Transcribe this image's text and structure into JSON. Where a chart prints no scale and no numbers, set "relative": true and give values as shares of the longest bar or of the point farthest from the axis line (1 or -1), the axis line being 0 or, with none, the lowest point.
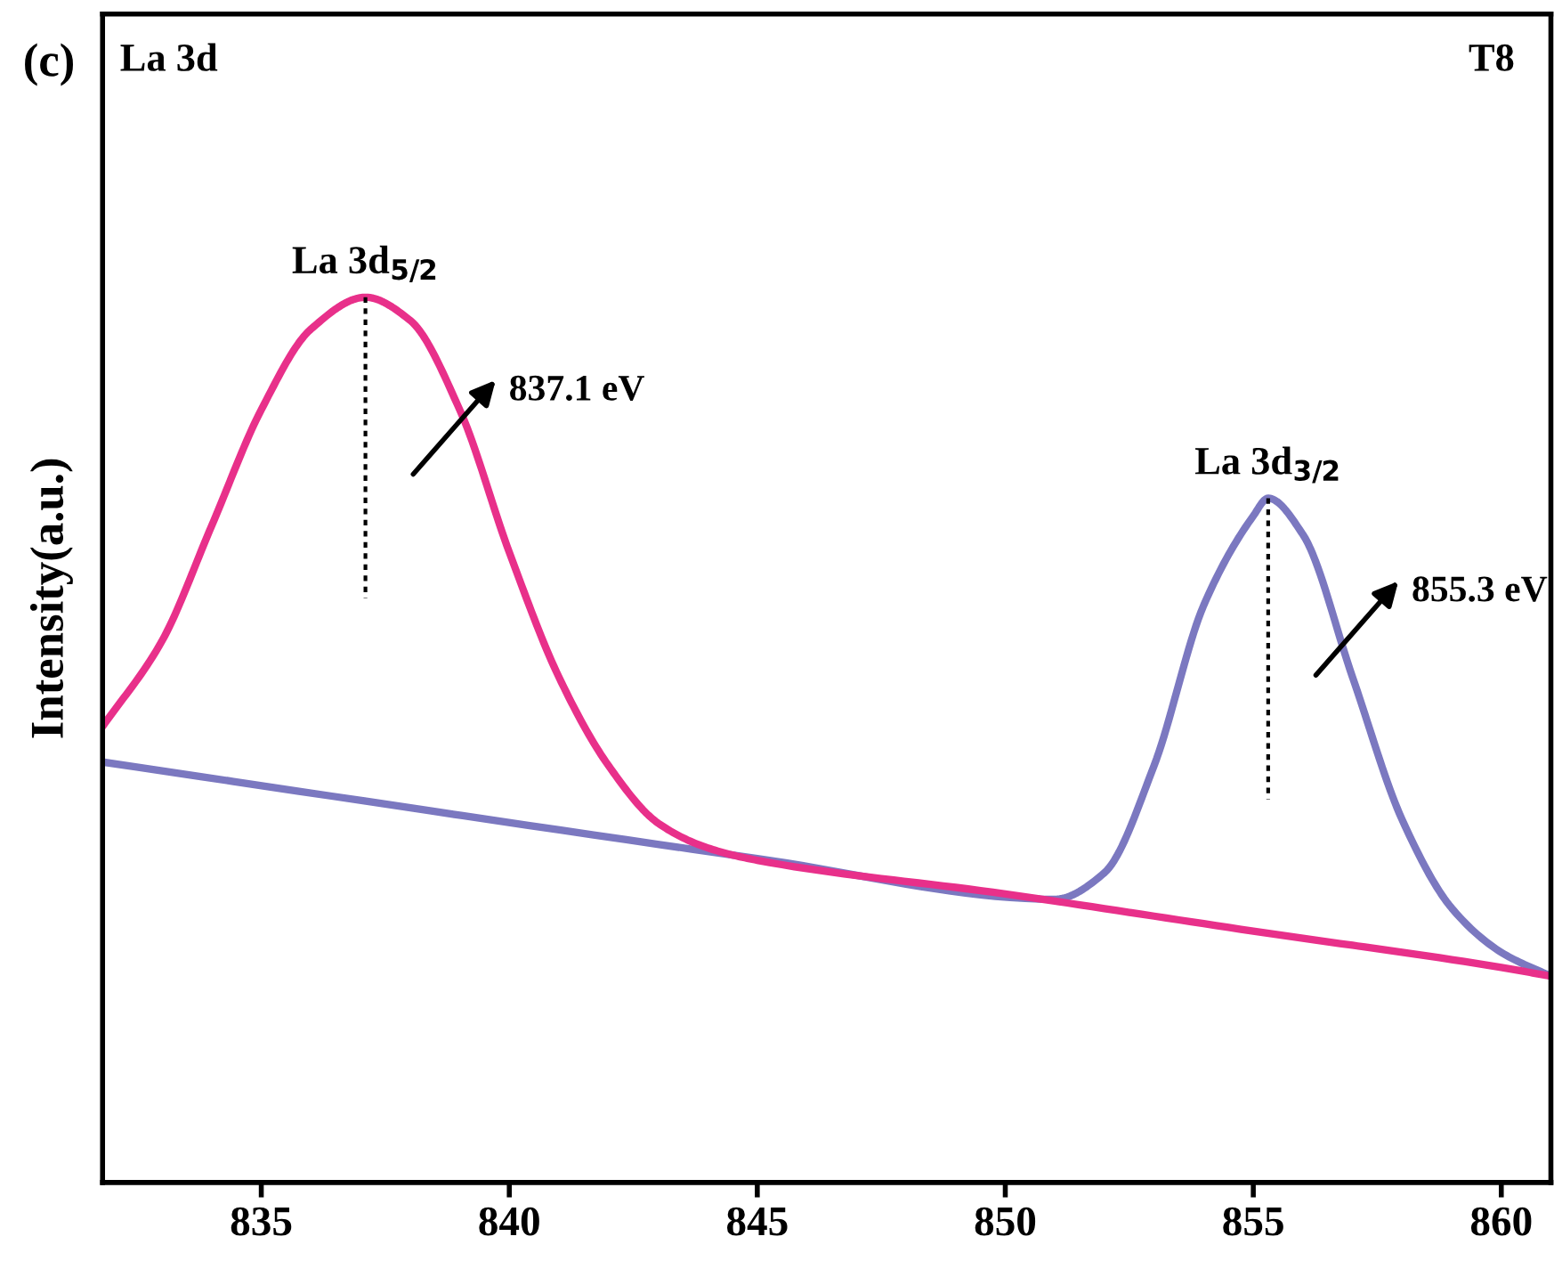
{
  "chart_data": {
    "type": "line",
    "ylabel": "Intensity(a.u.)",
    "relative": true,
    "xlim": [
      831.8,
      861
    ],
    "xticks": [
      835,
      840,
      845,
      850,
      855,
      860
    ],
    "series": [
      {
        "color": "#7b78c0",
        "x": [
          831.8,
          845,
          851,
          852,
          853,
          854,
          855,
          855.3,
          856,
          857,
          858,
          859,
          860,
          861
        ],
        "values": [
          0.475,
          0.366,
          0.32,
          0.35,
          0.471,
          0.652,
          0.753,
          0.773,
          0.732,
          0.571,
          0.41,
          0.31,
          0.26,
          0.233
        ]
      },
      {
        "color": "#e8308a",
        "x": [
          831.8,
          833,
          834,
          835,
          836,
          837.1,
          838,
          839,
          840,
          841,
          842,
          843,
          844,
          845,
          850,
          855,
          860,
          861
        ],
        "values": [
          0.515,
          0.612,
          0.742,
          0.873,
          0.964,
          1.0,
          0.974,
          0.873,
          0.712,
          0.571,
          0.471,
          0.406,
          0.378,
          0.364,
          0.326,
          0.284,
          0.243,
          0.233
        ]
      }
    ],
    "annotations": [
      "(c)",
      "La 3d",
      "T8",
      {
        "text": "La 3d$_{5/2}$",
        "x": 837.1,
        "y": 1.0
      },
      "837.1 eV",
      {
        "text": "La 3d$_{3/2}$",
        "x": 855.3,
        "y": 0.773
      },
      "855.3 eV"
    ]
  }
}
